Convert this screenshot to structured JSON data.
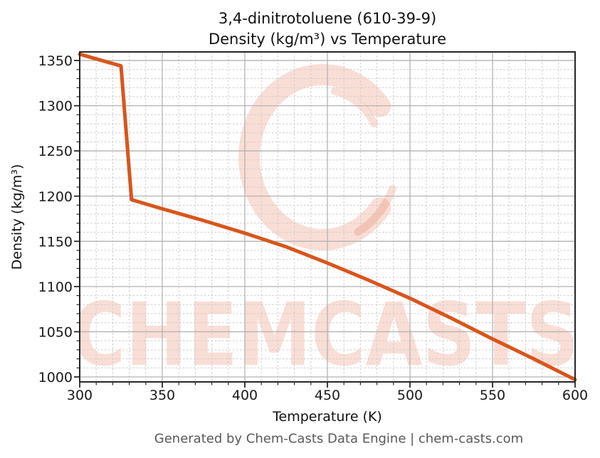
{
  "compound": {
    "name": "3,4-dinitrotoluene",
    "cas": "610-39-9"
  },
  "title": {
    "line1": "3,4-dinitrotoluene (610-39-9)",
    "line2": "Density (kg/m³) vs Temperature"
  },
  "footer": "Generated by Chem-Casts Data Engine | chem-casts.com",
  "watermark": {
    "text": "CHEMCASTS",
    "logo": "chemcasts-brush-ring-logo",
    "color_rgba": "rgba(224,78,38,0.19)"
  },
  "chart_data": {
    "type": "line",
    "title": "3,4-dinitrotoluene (610-39-9) Density (kg/m³) vs Temperature",
    "xlabel": "Temperature (K)",
    "ylabel": "Density (kg/m³)",
    "xlim": [
      300,
      600
    ],
    "ylim": [
      994.5,
      1359.5
    ],
    "x_ticks": [
      300,
      350,
      400,
      450,
      500,
      550,
      600
    ],
    "y_ticks": [
      1000,
      1050,
      1100,
      1150,
      1200,
      1250,
      1300,
      1350
    ],
    "minor_step_x": 10,
    "minor_step_y": 10,
    "grid": {
      "major": "solid gray",
      "minor": "dashed light gray"
    },
    "legend": "none",
    "line_color": "#d9551c",
    "series": [
      {
        "name": "Density",
        "points": [
          [
            300,
            1357
          ],
          [
            325,
            1344
          ],
          [
            331.4,
            1196
          ],
          [
            350,
            1186
          ],
          [
            375,
            1173
          ],
          [
            400,
            1159
          ],
          [
            425,
            1144
          ],
          [
            450,
            1126
          ],
          [
            475,
            1107
          ],
          [
            500,
            1087
          ],
          [
            525,
            1065
          ],
          [
            550,
            1042
          ],
          [
            575,
            1020
          ],
          [
            600,
            997
          ]
        ]
      }
    ]
  }
}
